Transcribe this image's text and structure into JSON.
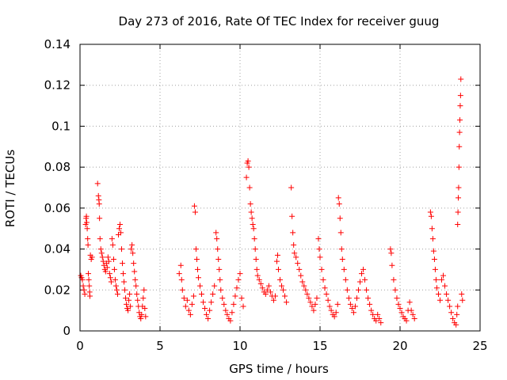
{
  "chart_data": {
    "type": "scatter",
    "title": "Day 273 of 2016, Rate Of TEC Index for receiver guug",
    "xlabel": "GPS time / hours",
    "ylabel": "ROTI / TECUs",
    "xlim": [
      0,
      25
    ],
    "ylim": [
      0,
      0.14
    ],
    "xticks": [
      0,
      5,
      10,
      15,
      20,
      25
    ],
    "xtick_labels": [
      "0",
      "5",
      "10",
      "15",
      "20",
      "25"
    ],
    "yticks": [
      0,
      0.02,
      0.04,
      0.06,
      0.08,
      0.1,
      0.12,
      0.14
    ],
    "ytick_labels": [
      "0",
      "0.02",
      "0.04",
      "0.06",
      "0.08",
      "0.1",
      "0.12",
      "0.14"
    ],
    "grid": true,
    "marker": "+",
    "color": "#ff0000",
    "series": [
      {
        "name": "ROTI",
        "points": [
          [
            0.05,
            0.027
          ],
          [
            0.1,
            0.026
          ],
          [
            0.15,
            0.025
          ],
          [
            0.2,
            0.022
          ],
          [
            0.25,
            0.02
          ],
          [
            0.3,
            0.018
          ],
          [
            0.35,
            0.052
          ],
          [
            0.38,
            0.055
          ],
          [
            0.4,
            0.056
          ],
          [
            0.42,
            0.053
          ],
          [
            0.45,
            0.05
          ],
          [
            0.48,
            0.045
          ],
          [
            0.5,
            0.042
          ],
          [
            0.52,
            0.028
          ],
          [
            0.55,
            0.025
          ],
          [
            0.58,
            0.022
          ],
          [
            0.6,
            0.019
          ],
          [
            0.62,
            0.017
          ],
          [
            0.65,
            0.037
          ],
          [
            0.7,
            0.035
          ],
          [
            0.75,
            0.036
          ],
          [
            1.1,
            0.072
          ],
          [
            1.15,
            0.066
          ],
          [
            1.18,
            0.064
          ],
          [
            1.2,
            0.062
          ],
          [
            1.22,
            0.055
          ],
          [
            1.25,
            0.045
          ],
          [
            1.3,
            0.04
          ],
          [
            1.35,
            0.038
          ],
          [
            1.4,
            0.036
          ],
          [
            1.45,
            0.034
          ],
          [
            1.5,
            0.032
          ],
          [
            1.55,
            0.03
          ],
          [
            1.6,
            0.029
          ],
          [
            1.65,
            0.033
          ],
          [
            1.7,
            0.031
          ],
          [
            1.75,
            0.036
          ],
          [
            1.8,
            0.034
          ],
          [
            1.85,
            0.028
          ],
          [
            1.9,
            0.026
          ],
          [
            1.95,
            0.024
          ],
          [
            2.0,
            0.045
          ],
          [
            2.05,
            0.042
          ],
          [
            2.1,
            0.035
          ],
          [
            2.15,
            0.03
          ],
          [
            2.2,
            0.025
          ],
          [
            2.25,
            0.022
          ],
          [
            2.3,
            0.02
          ],
          [
            2.35,
            0.018
          ],
          [
            2.4,
            0.047
          ],
          [
            2.45,
            0.05
          ],
          [
            2.5,
            0.052
          ],
          [
            2.55,
            0.048
          ],
          [
            2.6,
            0.04
          ],
          [
            2.65,
            0.033
          ],
          [
            2.7,
            0.028
          ],
          [
            2.75,
            0.024
          ],
          [
            2.8,
            0.02
          ],
          [
            2.85,
            0.016
          ],
          [
            2.9,
            0.013
          ],
          [
            2.95,
            0.011
          ],
          [
            3.0,
            0.01
          ],
          [
            3.05,
            0.015
          ],
          [
            3.1,
            0.018
          ],
          [
            3.15,
            0.012
          ],
          [
            3.2,
            0.04
          ],
          [
            3.25,
            0.042
          ],
          [
            3.3,
            0.038
          ],
          [
            3.35,
            0.033
          ],
          [
            3.4,
            0.029
          ],
          [
            3.45,
            0.025
          ],
          [
            3.5,
            0.022
          ],
          [
            3.55,
            0.018
          ],
          [
            3.6,
            0.015
          ],
          [
            3.65,
            0.012
          ],
          [
            3.7,
            0.009
          ],
          [
            3.75,
            0.007
          ],
          [
            3.8,
            0.006
          ],
          [
            3.85,
            0.008
          ],
          [
            3.9,
            0.012
          ],
          [
            3.95,
            0.016
          ],
          [
            4.0,
            0.02
          ],
          [
            4.05,
            0.011
          ],
          [
            4.1,
            0.007
          ],
          [
            6.2,
            0.028
          ],
          [
            6.3,
            0.032
          ],
          [
            6.35,
            0.025
          ],
          [
            6.4,
            0.02
          ],
          [
            6.5,
            0.016
          ],
          [
            6.6,
            0.012
          ],
          [
            6.7,
            0.015
          ],
          [
            6.8,
            0.01
          ],
          [
            6.9,
            0.008
          ],
          [
            7.0,
            0.013
          ],
          [
            7.1,
            0.017
          ],
          [
            7.15,
            0.061
          ],
          [
            7.2,
            0.058
          ],
          [
            7.25,
            0.04
          ],
          [
            7.3,
            0.035
          ],
          [
            7.35,
            0.03
          ],
          [
            7.4,
            0.026
          ],
          [
            7.5,
            0.022
          ],
          [
            7.6,
            0.018
          ],
          [
            7.7,
            0.014
          ],
          [
            7.8,
            0.011
          ],
          [
            7.9,
            0.008
          ],
          [
            8.0,
            0.006
          ],
          [
            8.1,
            0.01
          ],
          [
            8.2,
            0.014
          ],
          [
            8.3,
            0.018
          ],
          [
            8.4,
            0.022
          ],
          [
            8.5,
            0.048
          ],
          [
            8.55,
            0.045
          ],
          [
            8.6,
            0.04
          ],
          [
            8.65,
            0.035
          ],
          [
            8.7,
            0.03
          ],
          [
            8.75,
            0.025
          ],
          [
            8.8,
            0.02
          ],
          [
            8.9,
            0.016
          ],
          [
            9.0,
            0.013
          ],
          [
            9.1,
            0.01
          ],
          [
            9.2,
            0.008
          ],
          [
            9.3,
            0.006
          ],
          [
            9.4,
            0.005
          ],
          [
            9.5,
            0.009
          ],
          [
            9.6,
            0.013
          ],
          [
            9.7,
            0.017
          ],
          [
            9.8,
            0.021
          ],
          [
            9.9,
            0.025
          ],
          [
            10.0,
            0.028
          ],
          [
            10.1,
            0.016
          ],
          [
            10.2,
            0.012
          ],
          [
            10.4,
            0.075
          ],
          [
            10.45,
            0.082
          ],
          [
            10.5,
            0.083
          ],
          [
            10.55,
            0.08
          ],
          [
            10.6,
            0.07
          ],
          [
            10.65,
            0.062
          ],
          [
            10.7,
            0.058
          ],
          [
            10.75,
            0.055
          ],
          [
            10.8,
            0.052
          ],
          [
            10.85,
            0.05
          ],
          [
            10.9,
            0.045
          ],
          [
            10.95,
            0.04
          ],
          [
            11.0,
            0.035
          ],
          [
            11.05,
            0.03
          ],
          [
            11.1,
            0.027
          ],
          [
            11.2,
            0.025
          ],
          [
            11.3,
            0.023
          ],
          [
            11.4,
            0.021
          ],
          [
            11.5,
            0.019
          ],
          [
            11.6,
            0.018
          ],
          [
            11.7,
            0.02
          ],
          [
            11.8,
            0.022
          ],
          [
            11.9,
            0.019
          ],
          [
            12.0,
            0.017
          ],
          [
            12.1,
            0.015
          ],
          [
            12.2,
            0.017
          ],
          [
            12.3,
            0.034
          ],
          [
            12.35,
            0.037
          ],
          [
            12.4,
            0.03
          ],
          [
            12.5,
            0.025
          ],
          [
            12.6,
            0.022
          ],
          [
            12.7,
            0.02
          ],
          [
            12.8,
            0.017
          ],
          [
            12.9,
            0.014
          ],
          [
            13.2,
            0.07
          ],
          [
            13.25,
            0.056
          ],
          [
            13.3,
            0.048
          ],
          [
            13.35,
            0.042
          ],
          [
            13.4,
            0.038
          ],
          [
            13.5,
            0.036
          ],
          [
            13.6,
            0.033
          ],
          [
            13.7,
            0.03
          ],
          [
            13.8,
            0.027
          ],
          [
            13.9,
            0.024
          ],
          [
            14.0,
            0.022
          ],
          [
            14.1,
            0.02
          ],
          [
            14.2,
            0.018
          ],
          [
            14.3,
            0.016
          ],
          [
            14.4,
            0.014
          ],
          [
            14.5,
            0.012
          ],
          [
            14.6,
            0.01
          ],
          [
            14.7,
            0.013
          ],
          [
            14.8,
            0.016
          ],
          [
            14.9,
            0.045
          ],
          [
            14.95,
            0.04
          ],
          [
            15.0,
            0.036
          ],
          [
            15.1,
            0.03
          ],
          [
            15.2,
            0.025
          ],
          [
            15.3,
            0.021
          ],
          [
            15.4,
            0.018
          ],
          [
            15.5,
            0.015
          ],
          [
            15.6,
            0.012
          ],
          [
            15.7,
            0.01
          ],
          [
            15.8,
            0.008
          ],
          [
            15.9,
            0.007
          ],
          [
            16.0,
            0.009
          ],
          [
            16.1,
            0.013
          ],
          [
            16.15,
            0.065
          ],
          [
            16.2,
            0.062
          ],
          [
            16.25,
            0.055
          ],
          [
            16.3,
            0.048
          ],
          [
            16.35,
            0.04
          ],
          [
            16.4,
            0.035
          ],
          [
            16.5,
            0.03
          ],
          [
            16.6,
            0.025
          ],
          [
            16.7,
            0.02
          ],
          [
            16.8,
            0.016
          ],
          [
            16.9,
            0.013
          ],
          [
            17.0,
            0.011
          ],
          [
            17.1,
            0.009
          ],
          [
            17.2,
            0.012
          ],
          [
            17.3,
            0.016
          ],
          [
            17.4,
            0.02
          ],
          [
            17.5,
            0.024
          ],
          [
            17.6,
            0.028
          ],
          [
            17.7,
            0.03
          ],
          [
            17.8,
            0.025
          ],
          [
            17.9,
            0.02
          ],
          [
            18.0,
            0.016
          ],
          [
            18.1,
            0.013
          ],
          [
            18.2,
            0.01
          ],
          [
            18.3,
            0.008
          ],
          [
            18.4,
            0.006
          ],
          [
            18.5,
            0.005
          ],
          [
            18.6,
            0.008
          ],
          [
            18.7,
            0.006
          ],
          [
            18.8,
            0.004
          ],
          [
            19.4,
            0.04
          ],
          [
            19.45,
            0.038
          ],
          [
            19.5,
            0.032
          ],
          [
            19.6,
            0.025
          ],
          [
            19.7,
            0.02
          ],
          [
            19.8,
            0.016
          ],
          [
            19.9,
            0.013
          ],
          [
            20.0,
            0.011
          ],
          [
            20.1,
            0.009
          ],
          [
            20.2,
            0.007
          ],
          [
            20.3,
            0.006
          ],
          [
            20.4,
            0.005
          ],
          [
            20.5,
            0.01
          ],
          [
            20.6,
            0.014
          ],
          [
            20.7,
            0.01
          ],
          [
            20.8,
            0.008
          ],
          [
            20.9,
            0.006
          ],
          [
            21.9,
            0.058
          ],
          [
            21.95,
            0.056
          ],
          [
            22.0,
            0.05
          ],
          [
            22.05,
            0.045
          ],
          [
            22.1,
            0.039
          ],
          [
            22.15,
            0.035
          ],
          [
            22.2,
            0.03
          ],
          [
            22.25,
            0.025
          ],
          [
            22.3,
            0.021
          ],
          [
            22.4,
            0.018
          ],
          [
            22.5,
            0.015
          ],
          [
            22.6,
            0.025
          ],
          [
            22.7,
            0.027
          ],
          [
            22.8,
            0.022
          ],
          [
            22.9,
            0.018
          ],
          [
            23.0,
            0.015
          ],
          [
            23.1,
            0.012
          ],
          [
            23.2,
            0.009
          ],
          [
            23.3,
            0.006
          ],
          [
            23.4,
            0.004
          ],
          [
            23.5,
            0.003
          ],
          [
            23.55,
            0.008
          ],
          [
            23.6,
            0.012
          ],
          [
            23.6,
            0.052
          ],
          [
            23.62,
            0.058
          ],
          [
            23.64,
            0.065
          ],
          [
            23.66,
            0.07
          ],
          [
            23.68,
            0.08
          ],
          [
            23.7,
            0.09
          ],
          [
            23.72,
            0.097
          ],
          [
            23.74,
            0.103
          ],
          [
            23.76,
            0.11
          ],
          [
            23.78,
            0.115
          ],
          [
            23.8,
            0.123
          ],
          [
            23.85,
            0.018
          ],
          [
            23.9,
            0.015
          ]
        ]
      }
    ]
  }
}
